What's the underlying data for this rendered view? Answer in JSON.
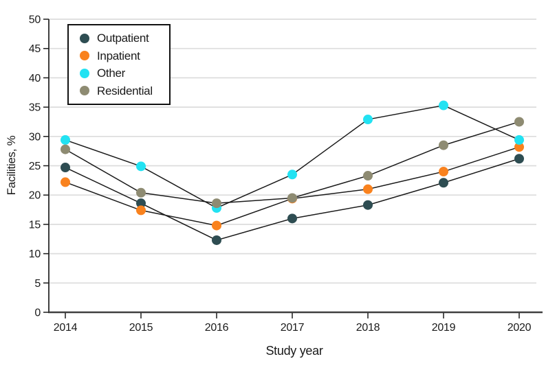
{
  "chart_data": {
    "type": "line",
    "title": "",
    "xlabel": "Study year",
    "ylabel": "Facilities, %",
    "x": [
      2014,
      2015,
      2016,
      2017,
      2018,
      2019,
      2020
    ],
    "ylim": [
      0,
      50
    ],
    "ytick_step": 5,
    "grid": "horizontal",
    "gridline_values": [
      5,
      10,
      15,
      20,
      25,
      30,
      35,
      40,
      45,
      50
    ],
    "legend_position": "top-left",
    "legend_order": [
      "Outpatient",
      "Inpatient",
      "Other",
      "Residential"
    ],
    "series": [
      {
        "name": "Outpatient",
        "color": "#2E4D52",
        "values": [
          24.7,
          18.6,
          12.3,
          16.0,
          18.3,
          22.1,
          26.2
        ]
      },
      {
        "name": "Inpatient",
        "color": "#F9821E",
        "values": [
          22.2,
          17.4,
          14.8,
          19.4,
          21.0,
          24.0,
          28.2
        ]
      },
      {
        "name": "Other",
        "color": "#22E2F2",
        "values": [
          29.4,
          24.9,
          17.8,
          23.5,
          32.9,
          35.3,
          29.4
        ]
      },
      {
        "name": "Residential",
        "color": "#8E8B72",
        "values": [
          27.8,
          20.4,
          18.6,
          19.5,
          23.3,
          28.5,
          32.5
        ]
      }
    ],
    "line_color": "#1a1a1a",
    "gridline_color": "#dcdcdc",
    "spine_color": "#3f3f3f"
  }
}
